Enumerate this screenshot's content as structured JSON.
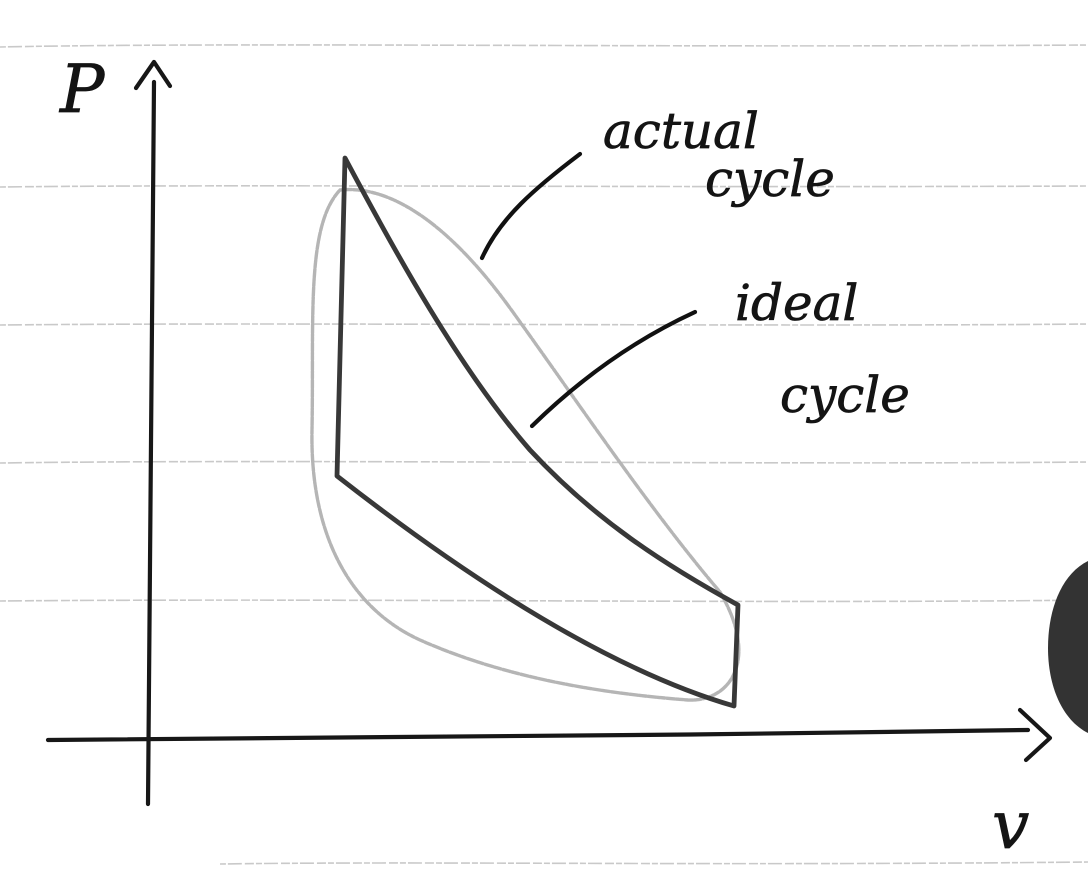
{
  "diagram": {
    "axes": {
      "y_label": "P",
      "x_label": "v"
    },
    "annotations": {
      "actual_line1": "actual",
      "actual_line2": "cycle",
      "ideal_line1": "ideal",
      "ideal_line2": "cycle"
    },
    "colors": {
      "ink": "#171717",
      "ideal": "#383838",
      "actual": "#b5b5b5",
      "paper_rule": "#c9c9c9",
      "badge": "#333333"
    }
  }
}
